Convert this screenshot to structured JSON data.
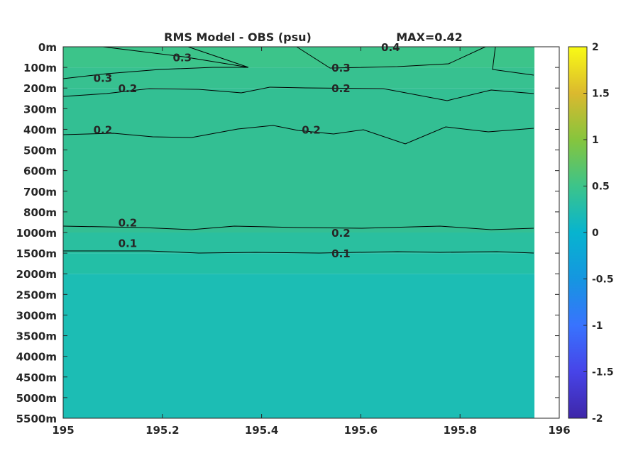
{
  "chart_data": {
    "type": "heatmap",
    "title": "RMS Model - OBS (psu)",
    "max_label": "MAX=0.42",
    "x_ticks": [
      "195",
      "195.2",
      "195.4",
      "195.6",
      "195.8",
      "196"
    ],
    "x_tick_values": [
      195,
      195.2,
      195.4,
      195.6,
      195.8,
      196
    ],
    "xlim": [
      195,
      196
    ],
    "x_data_extent": [
      195,
      195.95
    ],
    "y_ticks": [
      "0m",
      "100m",
      "200m",
      "300m",
      "400m",
      "500m",
      "600m",
      "700m",
      "800m",
      "1000m",
      "1500m",
      "2000m",
      "2500m",
      "3000m",
      "3500m",
      "4000m",
      "4500m",
      "5000m",
      "5500m"
    ],
    "y_axis": "depth levels (top to bottom)",
    "colorbar": {
      "colormap": "parula",
      "limits": [
        -2,
        2
      ],
      "ticks": [
        "2",
        "1.5",
        "1",
        "0.5",
        "0",
        "-0.5",
        "-1",
        "-1.5",
        "-2"
      ],
      "tick_values": [
        2,
        1.5,
        1,
        0.5,
        0,
        -0.5,
        -1,
        -1.5,
        -2
      ]
    },
    "depth_bands": [
      {
        "from": "0m",
        "to": "100m",
        "value": 0.33,
        "color": "#3cc48a"
      },
      {
        "from": "100m",
        "to": "200m",
        "value": 0.28,
        "color": "#37c190"
      },
      {
        "from": "200m",
        "to": "1000m",
        "value": 0.23,
        "color": "#33bf93"
      },
      {
        "from": "1000m",
        "to": "1500m",
        "value": 0.15,
        "color": "#2abf9f"
      },
      {
        "from": "1500m",
        "to": "2000m",
        "value": 0.1,
        "color": "#23bfa6"
      },
      {
        "from": "2000m",
        "to": "5500m",
        "value": 0.05,
        "color": "#1cbdb4"
      }
    ],
    "contour_labels": [
      {
        "text": "0.3",
        "x": 195.24,
        "depth": "0m-100m"
      },
      {
        "text": "0.4",
        "x": 195.66,
        "depth": "0m"
      },
      {
        "text": "0.3",
        "x": 195.56,
        "depth": "100m"
      },
      {
        "text": "0.3",
        "x": 195.08,
        "depth": "100m-200m"
      },
      {
        "text": "0.2",
        "x": 195.13,
        "depth": "200m"
      },
      {
        "text": "0.2",
        "x": 195.56,
        "depth": "200m"
      },
      {
        "text": "0.2",
        "x": 195.08,
        "depth": "400m"
      },
      {
        "text": "0.2",
        "x": 195.5,
        "depth": "400m"
      },
      {
        "text": "0.2",
        "x": 195.13,
        "depth": "800m-1000m"
      },
      {
        "text": "0.2",
        "x": 195.56,
        "depth": "1000m"
      },
      {
        "text": "0.1",
        "x": 195.13,
        "depth": "1000m-1500m"
      },
      {
        "text": "0.1",
        "x": 195.56,
        "depth": "1500m"
      }
    ]
  }
}
